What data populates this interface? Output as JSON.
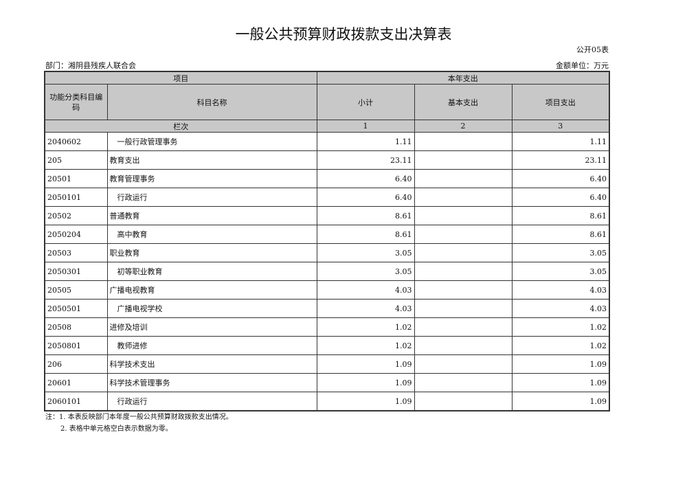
{
  "title": "一般公共预算财政拨款支出决算表",
  "table_code": "公开05表",
  "department": "部门：湘阴县残疾人联合会",
  "unit": "金额单位：万元",
  "headers": {
    "project": "项目",
    "current_year": "本年支出",
    "code": "功能分类科目编码",
    "name": "科目名称",
    "subtotal": "小计",
    "basic": "基本支出",
    "project_exp": "项目支出",
    "column_index": "栏次",
    "c1": "1",
    "c2": "2",
    "c3": "3"
  },
  "rows": [
    {
      "code": "2040602",
      "name": "一般行政管理事务",
      "subtotal": "1.11",
      "basic": "",
      "project": "1.11",
      "indent": true
    },
    {
      "code": "205",
      "name": "教育支出",
      "subtotal": "23.11",
      "basic": "",
      "project": "23.11",
      "indent": false
    },
    {
      "code": "20501",
      "name": "教育管理事务",
      "subtotal": "6.40",
      "basic": "",
      "project": "6.40",
      "indent": false
    },
    {
      "code": "2050101",
      "name": "行政运行",
      "subtotal": "6.40",
      "basic": "",
      "project": "6.40",
      "indent": true
    },
    {
      "code": "20502",
      "name": "普通教育",
      "subtotal": "8.61",
      "basic": "",
      "project": "8.61",
      "indent": false
    },
    {
      "code": "2050204",
      "name": "高中教育",
      "subtotal": "8.61",
      "basic": "",
      "project": "8.61",
      "indent": true
    },
    {
      "code": "20503",
      "name": "职业教育",
      "subtotal": "3.05",
      "basic": "",
      "project": "3.05",
      "indent": false
    },
    {
      "code": "2050301",
      "name": "初等职业教育",
      "subtotal": "3.05",
      "basic": "",
      "project": "3.05",
      "indent": true
    },
    {
      "code": "20505",
      "name": "广播电视教育",
      "subtotal": "4.03",
      "basic": "",
      "project": "4.03",
      "indent": false
    },
    {
      "code": "2050501",
      "name": "广播电视学校",
      "subtotal": "4.03",
      "basic": "",
      "project": "4.03",
      "indent": true
    },
    {
      "code": "20508",
      "name": "进修及培训",
      "subtotal": "1.02",
      "basic": "",
      "project": "1.02",
      "indent": false
    },
    {
      "code": "2050801",
      "name": "教师进修",
      "subtotal": "1.02",
      "basic": "",
      "project": "1.02",
      "indent": true
    },
    {
      "code": "206",
      "name": "科学技术支出",
      "subtotal": "1.09",
      "basic": "",
      "project": "1.09",
      "indent": false
    },
    {
      "code": "20601",
      "name": "科学技术管理事务",
      "subtotal": "1.09",
      "basic": "",
      "project": "1.09",
      "indent": false
    },
    {
      "code": "2060101",
      "name": "行政运行",
      "subtotal": "1.09",
      "basic": "",
      "project": "1.09",
      "indent": true
    }
  ],
  "notes": [
    "注：1. 本表反映部门本年度一般公共预算财政拨款支出情况。",
    "2. 表格中单元格空白表示数据为零。"
  ]
}
